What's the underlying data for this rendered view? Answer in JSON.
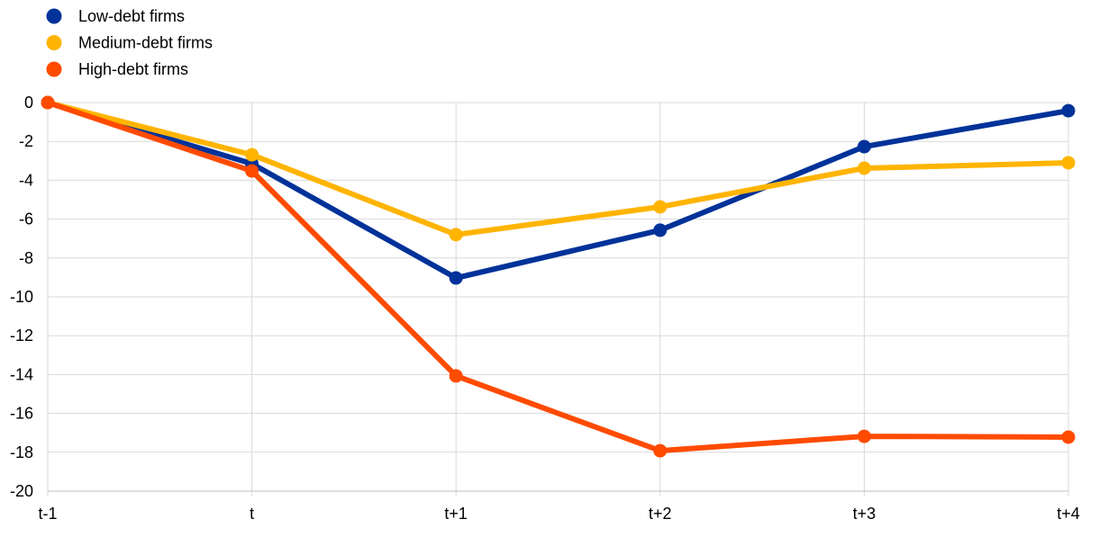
{
  "chart_data": {
    "type": "line",
    "title": "",
    "xlabel": "",
    "ylabel": "",
    "categories": [
      "t-1",
      "t",
      "t+1",
      "t+2",
      "t+3",
      "t+4"
    ],
    "ylim": [
      -20,
      0
    ],
    "yticks": [
      0,
      -2,
      -4,
      -6,
      -8,
      -10,
      -12,
      -14,
      -16,
      -18,
      -20
    ],
    "grid": true,
    "legend_position": "top-left",
    "series": [
      {
        "name": "Low-debt firms",
        "color": "#003299",
        "values": [
          0,
          -3.15,
          -9.03,
          -6.57,
          -2.27,
          -0.42
        ]
      },
      {
        "name": "Medium-debt firms",
        "color": "#FFB400",
        "values": [
          0,
          -2.69,
          -6.8,
          -5.37,
          -3.38,
          -3.1
        ]
      },
      {
        "name": "High-debt firms",
        "color": "#FF4B00",
        "values": [
          0,
          -3.52,
          -14.07,
          -17.92,
          -17.18,
          -17.22
        ]
      }
    ]
  }
}
